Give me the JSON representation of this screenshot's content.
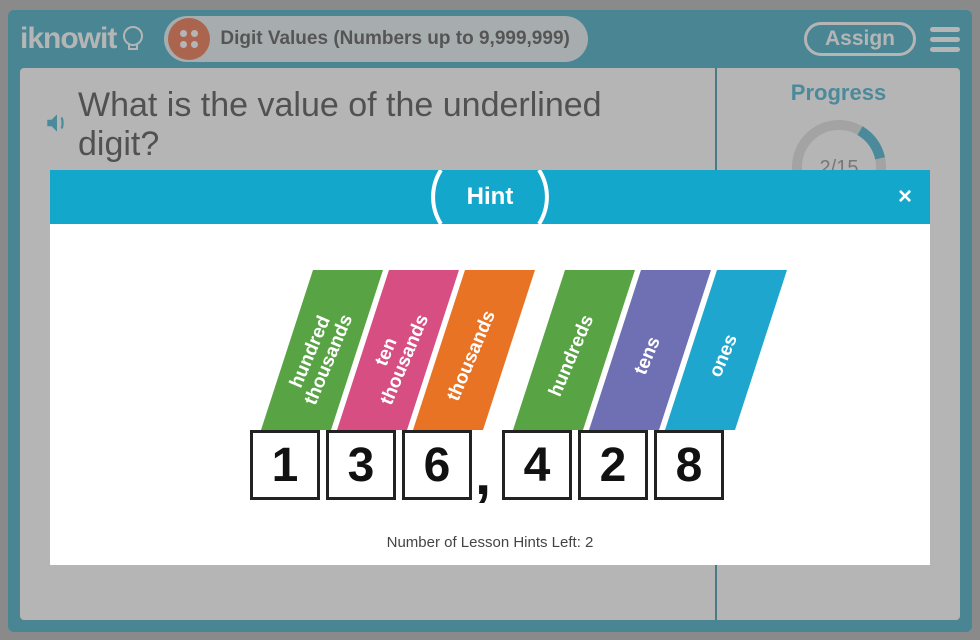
{
  "header": {
    "logo_text": "iknowit",
    "lesson_title": "Digit Values (Numbers up to 9,999,999)",
    "assign_label": "Assign"
  },
  "question": {
    "text": "What is the value of the underlined digit?",
    "number_display": "136,428"
  },
  "progress": {
    "label": "Progress",
    "done": 2,
    "total": 15,
    "text": "2/15",
    "ring_color": "#14a0c4",
    "track_color": "#d7d7d7"
  },
  "modal": {
    "title": "Hint",
    "hints_left_label": "Number of Lesson Hints Left: 2",
    "hints_remaining": 2
  },
  "place_value": {
    "gap_after_index": 2,
    "comma_glyph": ",",
    "columns": [
      {
        "digit": "1",
        "label": "hundred\nthousands",
        "color": "#58a444"
      },
      {
        "digit": "3",
        "label": "ten\nthousands",
        "color": "#d74e82"
      },
      {
        "digit": "6",
        "label": "thousands",
        "color": "#e87324"
      },
      {
        "digit": "4",
        "label": "hundreds",
        "color": "#58a444"
      },
      {
        "digit": "2",
        "label": "tens",
        "color": "#6f70b3"
      },
      {
        "digit": "8",
        "label": "ones",
        "color": "#1ea6ce"
      }
    ]
  },
  "colors": {
    "app_bg": "#1195b3",
    "modal_header": "#14a7cc",
    "level_circle": "#e84f1d"
  }
}
